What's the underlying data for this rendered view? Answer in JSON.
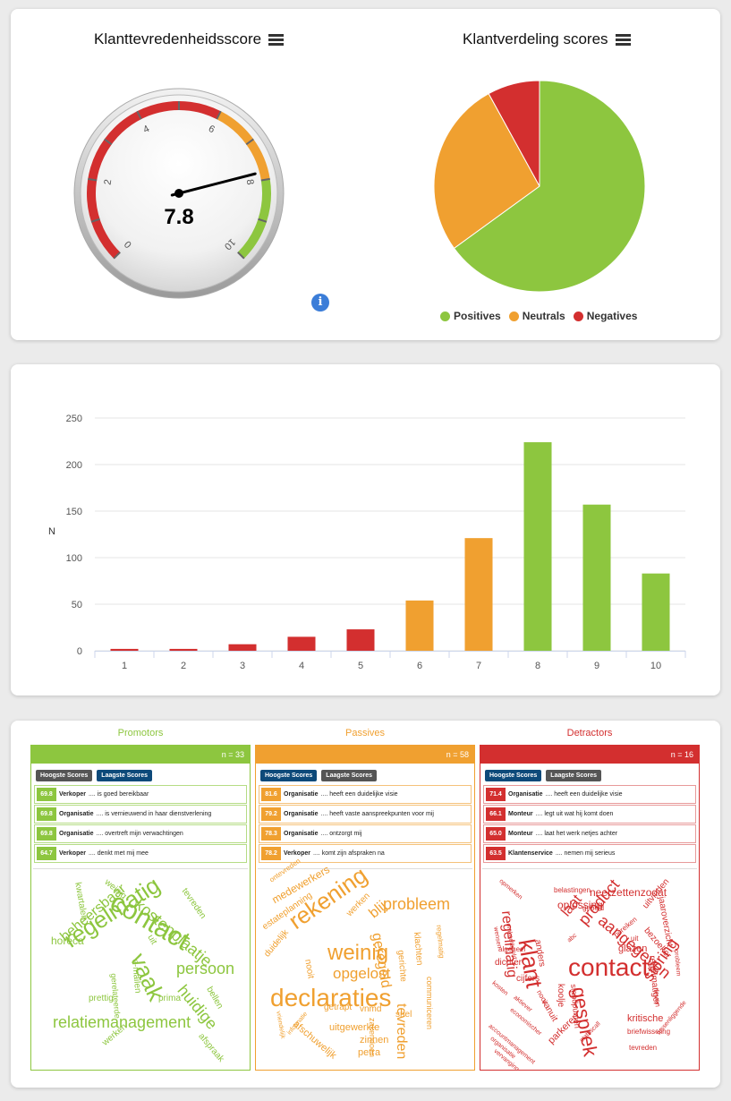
{
  "gauge": {
    "title": "Klanttevredenheidsscore",
    "value": 7.8,
    "display_value": "7.8",
    "min": 0,
    "max": 10,
    "tick_labels": [
      "0",
      "2",
      "4",
      "6",
      "8",
      "10"
    ],
    "bands": [
      {
        "from": 0,
        "to": 6,
        "color": "#d32f2f"
      },
      {
        "from": 6,
        "to": 8,
        "color": "#f0a030"
      },
      {
        "from": 8,
        "to": 10,
        "color": "#8dc63f"
      }
    ]
  },
  "pie": {
    "title": "Klantverdeling scores",
    "slices": [
      {
        "name": "Positives",
        "value": 65,
        "color": "#8dc63f"
      },
      {
        "name": "Neutrals",
        "value": 27,
        "color": "#f0a030"
      },
      {
        "name": "Negatives",
        "value": 8,
        "color": "#d32f2f"
      }
    ]
  },
  "chart_data": {
    "type": "bar",
    "categories": [
      "1",
      "2",
      "3",
      "4",
      "5",
      "6",
      "7",
      "8",
      "9",
      "10"
    ],
    "values": [
      2,
      2,
      7,
      15,
      23,
      54,
      121,
      224,
      157,
      83
    ],
    "colors": [
      "#d32f2f",
      "#d32f2f",
      "#d32f2f",
      "#d32f2f",
      "#d32f2f",
      "#f0a030",
      "#f0a030",
      "#8dc63f",
      "#8dc63f",
      "#8dc63f"
    ],
    "ylabel": "N",
    "yticks": [
      "0",
      "50",
      "100",
      "150",
      "200",
      "250"
    ],
    "ylim": [
      0,
      250
    ],
    "grid": true
  },
  "panels": [
    {
      "title": "Promotors",
      "count": "n = 33",
      "color": "#8dc63f",
      "row_border": "#b5dc85",
      "btn_high": "Hoogste Scores",
      "btn_low": "Laagste Scores",
      "rows": [
        {
          "score": "69.8",
          "subject": "Verkoper",
          "text": ".... is goed bereikbaar"
        },
        {
          "score": "69.8",
          "subject": "Organisatie",
          "text": ".... is vernieuwend in haar dienstverlening"
        },
        {
          "score": "69.8",
          "subject": "Organisatie",
          "text": ".... overtreft mijn verwachtingen"
        },
        {
          "score": "64.7",
          "subject": "Verkoper",
          "text": ".... denkt met mij mee"
        }
      ],
      "words": [
        {
          "t": "contact",
          "s": 30,
          "x": 96,
          "y": 22,
          "r": 30
        },
        {
          "t": "regelmatig",
          "s": 26,
          "x": 30,
          "y": 70,
          "r": -33
        },
        {
          "t": "vaak",
          "s": 26,
          "x": 128,
          "y": 90,
          "r": 65
        },
        {
          "t": "relatiemanagement",
          "s": 18,
          "x": 22,
          "y": 162,
          "r": 0
        },
        {
          "t": "kostenplaatje",
          "s": 18,
          "x": 122,
          "y": 30,
          "r": 40
        },
        {
          "t": "persoon",
          "s": 18,
          "x": 160,
          "y": 102,
          "r": 0
        },
        {
          "t": "huidige",
          "s": 18,
          "x": 172,
          "y": 126,
          "r": 50
        },
        {
          "t": "beheersbaar",
          "s": 16,
          "x": 28,
          "y": 72,
          "r": -40
        },
        {
          "t": "horeca",
          "s": 12,
          "x": 20,
          "y": 74,
          "r": 0
        },
        {
          "t": "kwartalen",
          "s": 10,
          "x": 54,
          "y": 14,
          "r": 80
        },
        {
          "t": "weinig",
          "s": 10,
          "x": 84,
          "y": 10,
          "r": 40
        },
        {
          "t": "tevreden",
          "s": 10,
          "x": 172,
          "y": 20,
          "r": 55
        },
        {
          "t": "uit",
          "s": 10,
          "x": 134,
          "y": 72,
          "r": 60
        },
        {
          "t": "e-mailen",
          "s": 10,
          "x": 118,
          "y": 100,
          "r": 85
        },
        {
          "t": "gerelateerde",
          "s": 9,
          "x": 94,
          "y": 116,
          "r": 85
        },
        {
          "t": "prettig",
          "s": 10,
          "x": 62,
          "y": 140,
          "r": 0
        },
        {
          "t": "prima",
          "s": 10,
          "x": 140,
          "y": 140,
          "r": 0
        },
        {
          "t": "bellen",
          "s": 10,
          "x": 200,
          "y": 130,
          "r": 60
        },
        {
          "t": "afspraak",
          "s": 10,
          "x": 190,
          "y": 182,
          "r": 50
        },
        {
          "t": "werken",
          "s": 10,
          "x": 76,
          "y": 192,
          "r": -40
        }
      ]
    },
    {
      "title": "Passives",
      "count": "n = 58",
      "color": "#f0a030",
      "row_border": "#f5c27a",
      "btn_high": "Hoogste Scores",
      "btn_low": "Laagste Scores",
      "rows": [
        {
          "score": "81.6",
          "subject": "Organisatie",
          "text": ".... heeft een duidelijke visie"
        },
        {
          "score": "79.2",
          "subject": "Organisatie",
          "text": ".... heeft vaste aanspreekpunten voor mij"
        },
        {
          "score": "78.3",
          "subject": "Organisatie",
          "text": ".... ontzorgt mij"
        },
        {
          "score": "78.2",
          "subject": "Verkoper",
          "text": ".... komt zijn afspraken na"
        }
      ],
      "words": [
        {
          "t": "declaraties",
          "s": 28,
          "x": 14,
          "y": 130,
          "r": 0
        },
        {
          "t": "rekening",
          "s": 26,
          "x": 30,
          "y": 50,
          "r": -35
        },
        {
          "t": "weinig",
          "s": 24,
          "x": 78,
          "y": 82,
          "r": 0
        },
        {
          "t": "probleem",
          "s": 18,
          "x": 140,
          "y": 30,
          "r": 0
        },
        {
          "t": "opgelost",
          "s": 17,
          "x": 84,
          "y": 108,
          "r": 0
        },
        {
          "t": "geregeld",
          "s": 16,
          "x": 140,
          "y": 70,
          "r": 80
        },
        {
          "t": "tevreden",
          "s": 16,
          "x": 168,
          "y": 150,
          "r": 90
        },
        {
          "t": "blij",
          "s": 16,
          "x": 122,
          "y": 46,
          "r": -40
        },
        {
          "t": "medewerkers",
          "s": 12,
          "x": 14,
          "y": 30,
          "r": -30
        },
        {
          "t": "estateplanning",
          "s": 10,
          "x": 4,
          "y": 62,
          "r": -35
        },
        {
          "t": "duidelijk",
          "s": 10,
          "x": 6,
          "y": 94,
          "r": -50
        },
        {
          "t": "werken",
          "s": 10,
          "x": 98,
          "y": 48,
          "r": -45
        },
        {
          "t": "nooit",
          "s": 10,
          "x": 60,
          "y": 100,
          "r": 80
        },
        {
          "t": "gerichte",
          "s": 10,
          "x": 164,
          "y": 90,
          "r": 85
        },
        {
          "t": "klachten",
          "s": 10,
          "x": 182,
          "y": 70,
          "r": 85
        },
        {
          "t": "communiceren",
          "s": 9,
          "x": 196,
          "y": 120,
          "r": 90
        },
        {
          "t": "regelmatig",
          "s": 8,
          "x": 206,
          "y": 62,
          "r": 85
        },
        {
          "t": "ontevreden",
          "s": 8,
          "x": 12,
          "y": 10,
          "r": -35
        },
        {
          "t": "snel",
          "s": 10,
          "x": 154,
          "y": 158,
          "r": 0
        },
        {
          "t": "getrapt",
          "s": 10,
          "x": 74,
          "y": 150,
          "r": 0
        },
        {
          "t": "vnmd",
          "s": 10,
          "x": 114,
          "y": 152,
          "r": 0
        },
        {
          "t": "afschuwelijk",
          "s": 11,
          "x": 44,
          "y": 168,
          "r": 40
        },
        {
          "t": "uitgewerkte",
          "s": 11,
          "x": 80,
          "y": 172,
          "r": 0
        },
        {
          "t": "zinnen",
          "s": 11,
          "x": 114,
          "y": 186,
          "r": 0
        },
        {
          "t": "petra",
          "s": 11,
          "x": 112,
          "y": 200,
          "r": 0
        },
        {
          "t": "zakendoen",
          "s": 9,
          "x": 132,
          "y": 166,
          "r": 90
        },
        {
          "t": "informatie",
          "s": 7,
          "x": 32,
          "y": 182,
          "r": -50
        },
        {
          "t": "vriendelijk",
          "s": 7,
          "x": 26,
          "y": 158,
          "r": 80
        }
      ]
    },
    {
      "title": "Detractors",
      "count": "n = 16",
      "color": "#d32f2f",
      "row_border": "#e89a9a",
      "btn_high": "Hoogste Scores",
      "btn_low": "Laagste Scores",
      "rows": [
        {
          "score": "71.4",
          "subject": "Organisatie",
          "text": ".... heeft een duidelijke visie"
        },
        {
          "score": "66.1",
          "subject": "Monteur",
          "text": ".... legt uit wat hij komt doen"
        },
        {
          "score": "65.0",
          "subject": "Monteur",
          "text": ".... laat het werk netjes achter"
        },
        {
          "score": "63.5",
          "subject": "Klantenservice",
          "text": ".... nemen mij serieus"
        }
      ],
      "words": [
        {
          "t": "contact",
          "s": 28,
          "x": 96,
          "y": 96,
          "r": 0
        },
        {
          "t": "klant",
          "s": 26,
          "x": 62,
          "y": 76,
          "r": 80
        },
        {
          "t": "gesprek",
          "s": 22,
          "x": 118,
          "y": 130,
          "r": 80
        },
        {
          "t": "aangegeven",
          "s": 18,
          "x": 138,
          "y": 48,
          "r": 40
        },
        {
          "t": "storing",
          "s": 18,
          "x": 176,
          "y": 118,
          "r": -55
        },
        {
          "t": "product",
          "s": 18,
          "x": 104,
          "y": 54,
          "r": -50
        },
        {
          "t": "regelmatig",
          "s": 16,
          "x": 34,
          "y": 46,
          "r": 85
        },
        {
          "t": "laat",
          "s": 16,
          "x": 86,
          "y": 46,
          "r": -50
        },
        {
          "t": "neerzettenzodat",
          "s": 12,
          "x": 120,
          "y": 20,
          "r": 0
        },
        {
          "t": "oplossing",
          "s": 12,
          "x": 84,
          "y": 34,
          "r": 0
        },
        {
          "t": "belastingen",
          "s": 8,
          "x": 80,
          "y": 20,
          "r": 0
        },
        {
          "t": "opmerken",
          "s": 7,
          "x": 22,
          "y": 10,
          "r": 40
        },
        {
          "t": "jaaroverzicht",
          "s": 10,
          "x": 204,
          "y": 30,
          "r": 80
        },
        {
          "t": "uitvinden",
          "s": 10,
          "x": 178,
          "y": 40,
          "r": -50
        },
        {
          "t": "bezoeker",
          "s": 10,
          "x": 186,
          "y": 64,
          "r": 50
        },
        {
          "t": "regelmatiger",
          "s": 10,
          "x": 194,
          "y": 96,
          "r": 85
        },
        {
          "t": "probleem",
          "s": 7,
          "x": 220,
          "y": 90,
          "r": 85
        },
        {
          "t": "glazen",
          "s": 11,
          "x": 152,
          "y": 84,
          "r": 0
        },
        {
          "t": "uit",
          "s": 8,
          "x": 166,
          "y": 74,
          "r": 0
        },
        {
          "t": "bereiken",
          "s": 8,
          "x": 146,
          "y": 72,
          "r": -40
        },
        {
          "t": "gebeld",
          "s": 8,
          "x": 112,
          "y": 40,
          "r": 0
        },
        {
          "t": "anders",
          "s": 10,
          "x": 66,
          "y": 78,
          "r": 80
        },
        {
          "t": "abc",
          "s": 7,
          "x": 94,
          "y": 78,
          "r": -40
        },
        {
          "t": "algeheel",
          "s": 8,
          "x": 18,
          "y": 86,
          "r": 0
        },
        {
          "t": "dichter",
          "s": 10,
          "x": 14,
          "y": 100,
          "r": 0
        },
        {
          "t": "cijfers",
          "s": 10,
          "x": 38,
          "y": 118,
          "r": 0
        },
        {
          "t": "wensen",
          "s": 7,
          "x": 18,
          "y": 64,
          "r": 80
        },
        {
          "t": "omkeerbeeld",
          "s": 7,
          "x": 32,
          "y": 60,
          "r": 80
        },
        {
          "t": "koolje",
          "s": 10,
          "x": 92,
          "y": 128,
          "r": 90
        },
        {
          "t": "standpunten",
          "s": 9,
          "x": 106,
          "y": 128,
          "r": 85
        },
        {
          "t": "vanuit",
          "s": 10,
          "x": 72,
          "y": 144,
          "r": 60
        },
        {
          "t": "nooit",
          "s": 8,
          "x": 66,
          "y": 134,
          "r": 60
        },
        {
          "t": "kritische",
          "s": 11,
          "x": 162,
          "y": 162,
          "r": 0
        },
        {
          "t": "briefwisseling",
          "s": 8,
          "x": 162,
          "y": 178,
          "r": 0
        },
        {
          "t": "teven",
          "s": 8,
          "x": 198,
          "y": 134,
          "r": 85
        },
        {
          "t": "tussenliggende",
          "s": 7,
          "x": 194,
          "y": 182,
          "r": -50
        },
        {
          "t": "tevreden",
          "s": 8,
          "x": 164,
          "y": 196,
          "r": 0
        },
        {
          "t": "parkeren",
          "s": 11,
          "x": 72,
          "y": 190,
          "r": -45
        },
        {
          "t": "statuscall",
          "s": 7,
          "x": 108,
          "y": 190,
          "r": -45
        },
        {
          "t": "accountmanagement",
          "s": 7,
          "x": 10,
          "y": 172,
          "r": 40
        },
        {
          "t": "organisatie",
          "s": 7,
          "x": 12,
          "y": 186,
          "r": 40
        },
        {
          "t": "vervanging",
          "s": 7,
          "x": 16,
          "y": 200,
          "r": 40
        },
        {
          "t": "economischer",
          "s": 7,
          "x": 34,
          "y": 154,
          "r": 40
        },
        {
          "t": "aktiever",
          "s": 7,
          "x": 38,
          "y": 140,
          "r": 40
        },
        {
          "t": "kosten",
          "s": 7,
          "x": 14,
          "y": 124,
          "r": 40
        }
      ]
    }
  ]
}
